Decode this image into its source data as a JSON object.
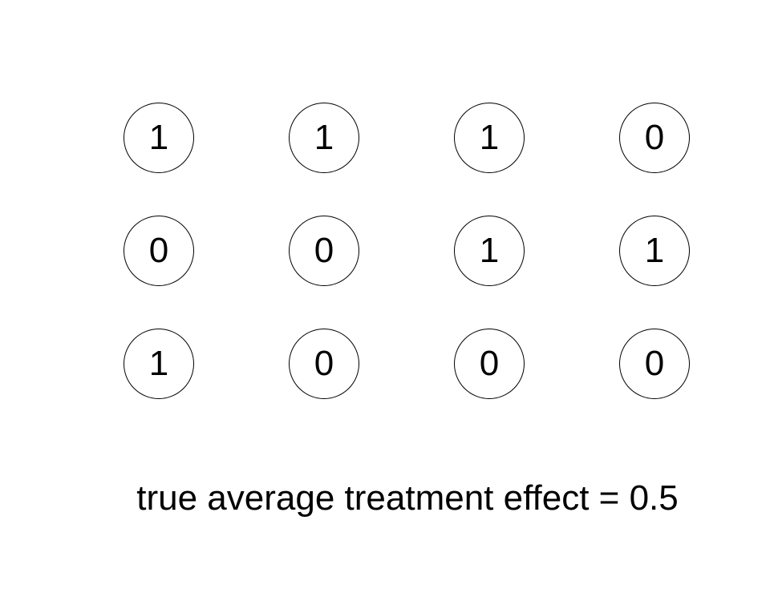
{
  "diagram": {
    "rows": [
      [
        "1",
        "1",
        "1",
        "0"
      ],
      [
        "0",
        "0",
        "1",
        "1"
      ],
      [
        "1",
        "0",
        "0",
        "0"
      ]
    ],
    "caption": "true average treatment effect = 0.5"
  }
}
